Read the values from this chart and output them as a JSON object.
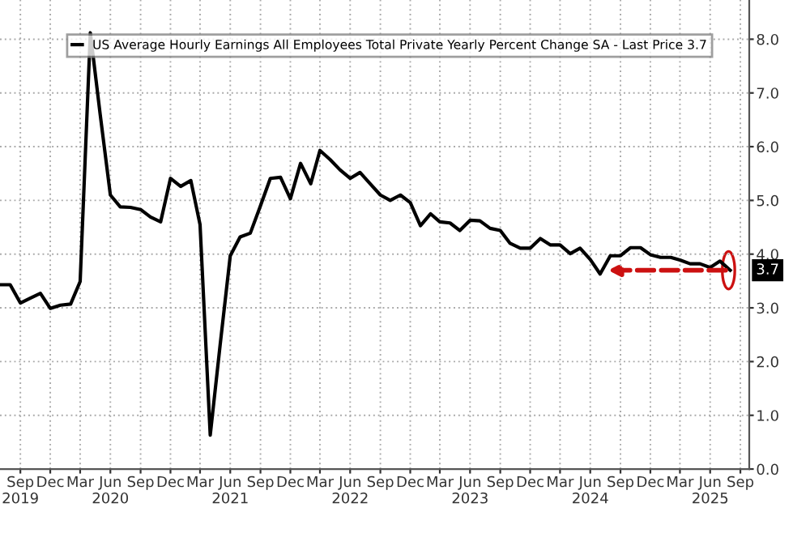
{
  "chart_data": {
    "type": "line",
    "x": [
      "2019-07",
      "2019-08",
      "2019-09",
      "2019-10",
      "2019-11",
      "2019-12",
      "2020-01",
      "2020-02",
      "2020-03",
      "2020-04",
      "2020-05",
      "2020-06",
      "2020-07",
      "2020-08",
      "2020-09",
      "2020-10",
      "2020-11",
      "2020-12",
      "2021-01",
      "2021-02",
      "2021-03",
      "2021-04",
      "2021-05",
      "2021-06",
      "2021-07",
      "2021-08",
      "2021-09",
      "2021-10",
      "2021-11",
      "2021-12",
      "2022-01",
      "2022-02",
      "2022-03",
      "2022-04",
      "2022-05",
      "2022-06",
      "2022-07",
      "2022-08",
      "2022-09",
      "2022-10",
      "2022-11",
      "2022-12",
      "2023-01",
      "2023-02",
      "2023-03",
      "2023-04",
      "2023-05",
      "2023-06",
      "2023-07",
      "2023-08",
      "2023-09",
      "2023-10",
      "2023-11",
      "2023-12",
      "2024-01",
      "2024-02",
      "2024-03",
      "2024-04",
      "2024-05",
      "2024-06",
      "2024-07",
      "2024-08",
      "2024-09",
      "2024-10",
      "2024-11",
      "2024-12",
      "2025-01",
      "2025-02",
      "2025-03",
      "2025-04",
      "2025-05",
      "2025-06",
      "2025-07",
      "2025-08"
    ],
    "series": [
      {
        "name": "US Average Hourly Earnings All Employees Total Private Yearly Percent Change SA - Last Price 3.7",
        "color": "#000000",
        "values": [
          3.43,
          3.43,
          3.09,
          3.18,
          3.27,
          2.99,
          3.05,
          3.07,
          3.49,
          8.12,
          6.6,
          5.1,
          4.88,
          4.87,
          4.83,
          4.69,
          4.6,
          5.41,
          5.26,
          5.37,
          4.55,
          0.63,
          2.3,
          3.97,
          4.32,
          4.39,
          4.9,
          5.41,
          5.43,
          5.03,
          5.69,
          5.31,
          5.93,
          5.76,
          5.57,
          5.41,
          5.52,
          5.31,
          5.1,
          5.0,
          5.1,
          4.96,
          4.53,
          4.75,
          4.6,
          4.58,
          4.44,
          4.63,
          4.62,
          4.48,
          4.44,
          4.2,
          4.11,
          4.11,
          4.29,
          4.17,
          4.17,
          4.01,
          4.11,
          3.9,
          3.63,
          3.97,
          3.97,
          4.12,
          4.12,
          3.99,
          3.94,
          3.94,
          3.89,
          3.82,
          3.82,
          3.75,
          3.87,
          3.7
        ]
      }
    ],
    "xlim": [
      "2019-07-01",
      "2025-09-28"
    ],
    "xticks": [
      {
        "value": "2019-09-01",
        "label": "Sep\n2019"
      },
      {
        "value": "2019-12-01",
        "label": "Dec"
      },
      {
        "value": "2020-03-01",
        "label": "Mar"
      },
      {
        "value": "2020-06-01",
        "label": "Jun\n2020"
      },
      {
        "value": "2020-09-01",
        "label": "Sep"
      },
      {
        "value": "2020-12-01",
        "label": "Dec"
      },
      {
        "value": "2021-03-01",
        "label": "Mar"
      },
      {
        "value": "2021-06-01",
        "label": "Jun\n2021"
      },
      {
        "value": "2021-09-01",
        "label": "Sep"
      },
      {
        "value": "2021-12-01",
        "label": "Dec"
      },
      {
        "value": "2022-03-01",
        "label": "Mar"
      },
      {
        "value": "2022-06-01",
        "label": "Jun\n2022"
      },
      {
        "value": "2022-09-01",
        "label": "Sep"
      },
      {
        "value": "2022-12-01",
        "label": "Dec"
      },
      {
        "value": "2023-03-01",
        "label": "Mar"
      },
      {
        "value": "2023-06-01",
        "label": "Jun\n2023"
      },
      {
        "value": "2023-09-01",
        "label": "Sep"
      },
      {
        "value": "2023-12-01",
        "label": "Dec"
      },
      {
        "value": "2024-03-01",
        "label": "Mar"
      },
      {
        "value": "2024-06-01",
        "label": "Jun\n2024"
      },
      {
        "value": "2024-09-01",
        "label": "Sep"
      },
      {
        "value": "2024-12-01",
        "label": "Dec"
      },
      {
        "value": "2025-03-01",
        "label": "Mar"
      },
      {
        "value": "2025-06-01",
        "label": "Jun\n2025"
      },
      {
        "value": "2025-09-01",
        "label": "Sep"
      }
    ],
    "ylim": [
      0,
      8.73
    ],
    "yticks": [
      {
        "value": 0,
        "label": "0.0"
      },
      {
        "value": 1,
        "label": "1.0"
      },
      {
        "value": 2,
        "label": "2.0"
      },
      {
        "value": 3,
        "label": "3.0"
      },
      {
        "value": 4,
        "label": "4.0"
      },
      {
        "value": 5,
        "label": "5.0"
      },
      {
        "value": 6,
        "label": "6.0"
      },
      {
        "value": 7,
        "label": "7.0"
      },
      {
        "value": 8,
        "label": "8.0"
      }
    ],
    "annotations": [
      {
        "text": "3.7",
        "x": "2025-08",
        "y": 3.7
      }
    ],
    "grid": true,
    "legend": "top",
    "marker": "none",
    "line_style": "solid"
  }
}
